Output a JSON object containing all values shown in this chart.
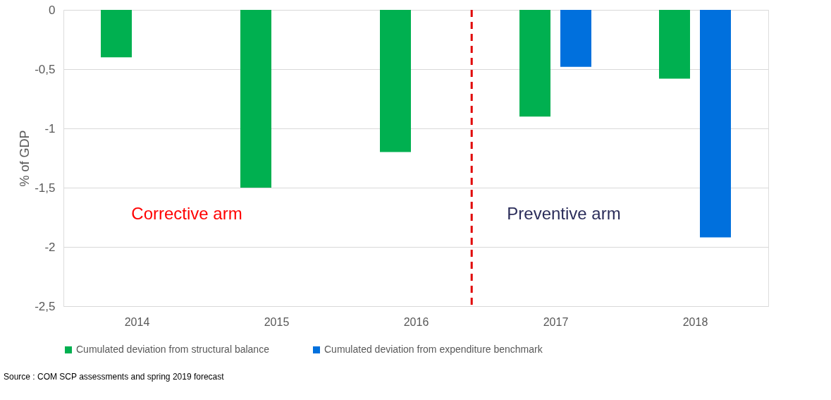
{
  "chart_data": {
    "type": "bar",
    "x": [
      2014,
      2015,
      2016,
      2017,
      2018
    ],
    "ylabel": "% of GDP",
    "series": [
      {
        "name": "Cumulated deviation from structural balance",
        "color": "#00b050",
        "values": [
          -0.4,
          -1.5,
          -1.2,
          -0.9,
          -0.58
        ]
      },
      {
        "name": "Cumulated deviation from expenditure benchmark",
        "color": "#0070dd",
        "values": [
          null,
          null,
          null,
          -0.48,
          -1.92
        ]
      }
    ],
    "xlim": [
      2013.5,
      2018.5
    ],
    "xticks": [
      2014,
      2015,
      2016,
      2017,
      2018
    ],
    "ylim": [
      -2.5,
      0
    ],
    "yticks": [
      0,
      {
        "value": -0.5,
        "label": "-0,5"
      },
      -1,
      {
        "value": -1.5,
        "label": "-1,5"
      },
      -2,
      {
        "value": -2.5,
        "label": "-2,5"
      }
    ],
    "grid": "y",
    "legend": "bottom",
    "ref_lines": [
      {
        "axis": "x",
        "value": 2016.4,
        "color": "#e00000",
        "line_style": "dashed"
      }
    ],
    "annotations": [
      "Corrective arm",
      "Preventive arm",
      "Source : COM SCP assessments and spring 2019 forecast"
    ]
  }
}
